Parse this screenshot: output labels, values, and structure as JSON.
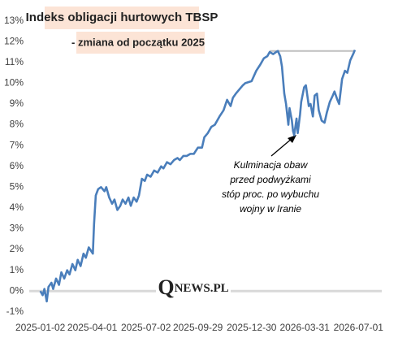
{
  "chart_data": {
    "type": "line",
    "title": "Indeks obligacji hurtowych TBSP",
    "subtitle": "- zmiana od początku 2025",
    "annotation": [
      "Kulminacja obaw",
      "przed podwyżkami",
      "stóp proc. po wybuchu",
      "wojny w Iranie"
    ],
    "watermark": [
      "Q",
      "NEWS",
      ".PL"
    ],
    "color": "#4a7ebb",
    "reference_line": {
      "value": 11.55,
      "color": "#bfbfbf",
      "x": [
        "2026-01-30",
        "2026-06-25"
      ]
    },
    "x": [
      "2025-01-02",
      "2025-01-06",
      "2025-01-09",
      "2025-01-13",
      "2025-01-16",
      "2025-01-21",
      "2025-01-24",
      "2025-01-29",
      "2025-02-03",
      "2025-02-07",
      "2025-02-12",
      "2025-02-17",
      "2025-02-21",
      "2025-02-26",
      "2025-03-03",
      "2025-03-07",
      "2025-03-12",
      "2025-03-17",
      "2025-03-21",
      "2025-03-26",
      "2025-04-02",
      "2025-04-04",
      "2025-04-07",
      "2025-04-11",
      "2025-04-16",
      "2025-04-22",
      "2025-04-25",
      "2025-04-30",
      "2025-05-05",
      "2025-05-09",
      "2025-05-14",
      "2025-05-19",
      "2025-05-23",
      "2025-05-28",
      "2025-06-02",
      "2025-06-06",
      "2025-06-11",
      "2025-06-16",
      "2025-06-20",
      "2025-06-25",
      "2025-06-30",
      "2025-07-04",
      "2025-07-10",
      "2025-07-16",
      "2025-07-22",
      "2025-07-28",
      "2025-08-01",
      "2025-08-07",
      "2025-08-13",
      "2025-08-19",
      "2025-08-25",
      "2025-08-29",
      "2025-09-04",
      "2025-09-10",
      "2025-09-16",
      "2025-09-22",
      "2025-09-29",
      "2025-10-06",
      "2025-10-10",
      "2025-10-16",
      "2025-10-22",
      "2025-10-28",
      "2025-11-05",
      "2025-11-12",
      "2025-11-18",
      "2025-11-24",
      "2025-11-28",
      "2025-12-03",
      "2025-12-09",
      "2025-12-15",
      "2025-12-19",
      "2025-12-30",
      "2026-01-07",
      "2026-01-14",
      "2026-01-20",
      "2026-01-26",
      "2026-01-30",
      "2026-02-05",
      "2026-02-10",
      "2026-02-13",
      "2026-02-17",
      "2026-02-20",
      "2026-02-24",
      "2026-02-27",
      "2026-03-03",
      "2026-03-05",
      "2026-03-09",
      "2026-03-11",
      "2026-03-13",
      "2026-03-17",
      "2026-03-19",
      "2026-03-23",
      "2026-03-25",
      "2026-03-30",
      "2026-04-02",
      "2026-04-07",
      "2026-04-10",
      "2026-04-14",
      "2026-04-17",
      "2026-04-21",
      "2026-04-24",
      "2026-04-29",
      "2026-05-04",
      "2026-05-08",
      "2026-05-13",
      "2026-05-18",
      "2026-05-21",
      "2026-05-26",
      "2026-05-29",
      "2026-06-03",
      "2026-06-08",
      "2026-06-12",
      "2026-06-17",
      "2026-06-22",
      "2026-06-25"
    ],
    "values": [
      0.0,
      -0.2,
      0.1,
      -0.5,
      0.2,
      0.4,
      0.1,
      0.6,
      0.3,
      0.9,
      0.6,
      1.0,
      0.8,
      1.3,
      1.0,
      1.5,
      1.2,
      1.8,
      1.6,
      2.1,
      1.8,
      3.2,
      4.6,
      4.9,
      5.0,
      4.8,
      5.0,
      4.5,
      4.2,
      4.4,
      3.9,
      4.1,
      4.4,
      4.2,
      4.5,
      4.1,
      4.5,
      4.3,
      4.6,
      5.4,
      5.3,
      5.6,
      5.5,
      5.8,
      5.7,
      6.0,
      5.9,
      6.2,
      6.1,
      6.3,
      6.4,
      6.3,
      6.5,
      6.5,
      6.6,
      6.6,
      6.9,
      6.9,
      7.4,
      7.6,
      7.9,
      8.0,
      8.4,
      8.7,
      9.2,
      8.9,
      9.3,
      9.5,
      9.7,
      9.9,
      10.0,
      10.1,
      10.6,
      10.9,
      11.2,
      11.3,
      11.5,
      11.4,
      11.5,
      11.55,
      11.3,
      10.8,
      9.5,
      9.0,
      8.0,
      8.8,
      8.2,
      7.7,
      7.5,
      8.3,
      7.6,
      8.5,
      9.1,
      9.8,
      9.9,
      8.9,
      9.0,
      8.4,
      9.4,
      9.5,
      8.7,
      8.2,
      8.1,
      8.6,
      9.1,
      9.4,
      9.6,
      9.2,
      9.0,
      10.2,
      10.6,
      10.5,
      11.1,
      11.4,
      11.6
    ],
    "xlim": [
      "2024-12-14",
      "2026-08-10"
    ],
    "xticks": [
      "2025-01-02",
      "2025-04-01",
      "2025-07-02",
      "2025-09-29",
      "2025-12-30",
      "2026-03-31",
      "2026-07-01"
    ],
    "ylim": [
      -1.4,
      13.3
    ],
    "yticks": [
      {
        "value": -1,
        "label": "-1%"
      },
      {
        "value": 0,
        "label": "0%"
      },
      {
        "value": 1,
        "label": "1%"
      },
      {
        "value": 2,
        "label": "2%"
      },
      {
        "value": 3,
        "label": "3%"
      },
      {
        "value": 4,
        "label": "4%"
      },
      {
        "value": 5,
        "label": "5%"
      },
      {
        "value": 6,
        "label": "6%"
      },
      {
        "value": 7,
        "label": "7%"
      },
      {
        "value": 8,
        "label": "8%"
      },
      {
        "value": 9,
        "label": "9%"
      },
      {
        "value": 10,
        "label": "10%"
      },
      {
        "value": 11,
        "label": "11%"
      },
      {
        "value": 12,
        "label": "12%"
      },
      {
        "value": 13,
        "label": "13%"
      }
    ],
    "grid": false
  }
}
